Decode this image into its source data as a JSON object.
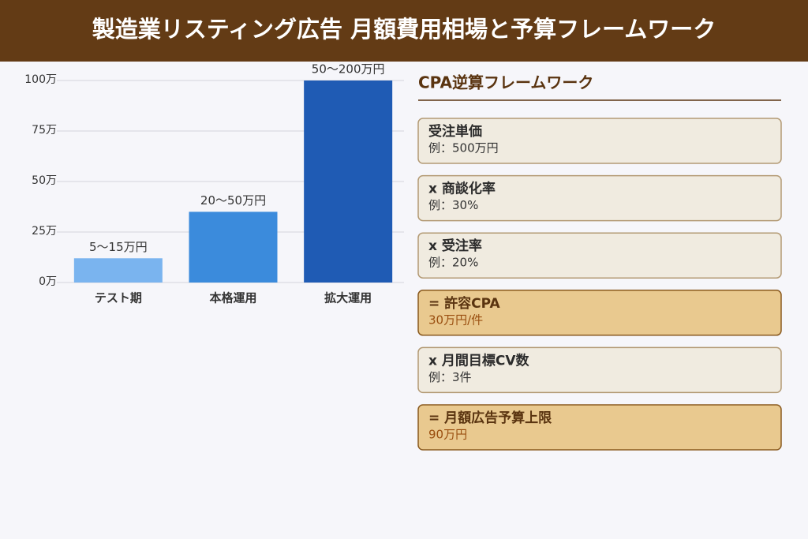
{
  "header": {
    "title": "製造業リスティング広告 月額費用相場と予算フレームワーク"
  },
  "chart_data": {
    "type": "bar",
    "categories": [
      "テスト期",
      "本格運用",
      "拡大運用"
    ],
    "values": [
      12,
      35,
      100
    ],
    "value_labels": [
      "5〜15万円",
      "20〜50万円",
      "50〜200万円"
    ],
    "colors": [
      "#7ab4ef",
      "#3b8bdc",
      "#1f5bb4"
    ],
    "ylim": [
      0,
      100
    ],
    "yticks": [
      {
        "value": 0,
        "label": "0万"
      },
      {
        "value": 25,
        "label": "25万"
      },
      {
        "value": 50,
        "label": "50万"
      },
      {
        "value": 75,
        "label": "75万"
      },
      {
        "value": 100,
        "label": "100万"
      }
    ],
    "grid": true
  },
  "framework": {
    "title": "CPA逆算フレームワーク",
    "boxes": [
      {
        "title": "受注単価",
        "detail": "例：500万円",
        "highlighted": false
      },
      {
        "title": "x 商談化率",
        "detail": "例：30%",
        "highlighted": false
      },
      {
        "title": "x 受注率",
        "detail": "例：20%",
        "highlighted": false
      },
      {
        "title": "= 許容CPA",
        "detail": "30万円/件",
        "highlighted": true
      },
      {
        "title": "x 月間目標CV数",
        "detail": "例：3件",
        "highlighted": false
      },
      {
        "title": "= 月額広告予算上限",
        "detail": "90万円",
        "highlighted": true
      }
    ]
  }
}
